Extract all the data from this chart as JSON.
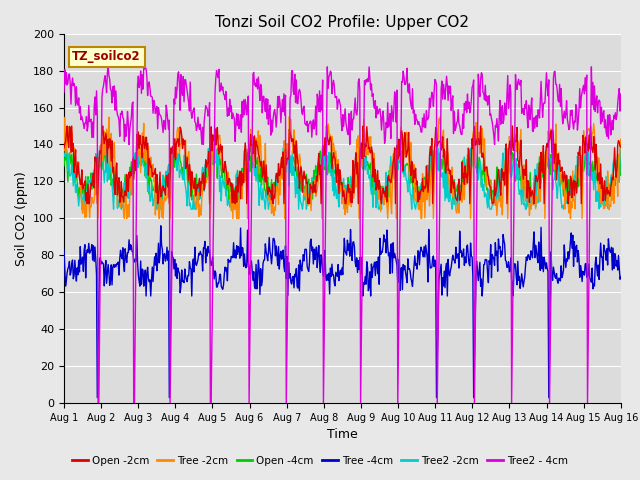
{
  "title": "Tonzi Soil CO2 Profile: Upper CO2",
  "ylabel": "Soil CO2 (ppm)",
  "xlabel": "Time",
  "dataset_label": "TZ_soilco2",
  "ylim": [
    0,
    200
  ],
  "xlim": [
    0,
    15
  ],
  "xtick_labels": [
    "Aug 1",
    "Aug 2",
    "Aug 3",
    "Aug 4",
    "Aug 5",
    "Aug 6",
    "Aug 7",
    "Aug 8",
    "Aug 9",
    "Aug 10",
    "Aug 11",
    "Aug 12",
    "Aug 13",
    "Aug 14",
    "Aug 15",
    "Aug 16"
  ],
  "ytick_values": [
    0,
    20,
    40,
    60,
    80,
    100,
    120,
    140,
    160,
    180,
    200
  ],
  "colors": {
    "open2": "#dd0000",
    "tree2": "#ff8800",
    "open4": "#00cc00",
    "tree4": "#0000cc",
    "tree2_2": "#00cccc",
    "tree2_4": "#dd00dd"
  },
  "legend_labels": [
    "Open -2cm",
    "Tree -2cm",
    "Open -4cm",
    "Tree -4cm",
    "Tree2 -2cm",
    "Tree2 - 4cm"
  ],
  "n_points": 720,
  "seed": 99
}
